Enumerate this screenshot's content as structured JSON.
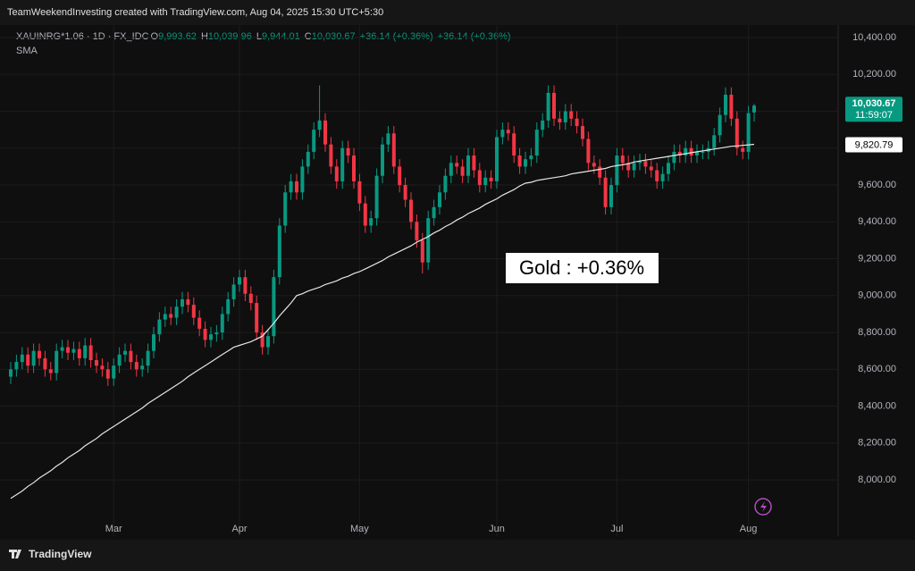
{
  "header": {
    "title": "TeamWeekendInvesting created with TradingView.com, Aug 04, 2025 15:30 UTC+5:30"
  },
  "legend": {
    "symbol": "XAUINRG*1.06 · 1D · FX_IDC",
    "open_label": "O",
    "open": "9,993.62",
    "high_label": "H",
    "high": "10,039.96",
    "low_label": "L",
    "low": "9,944.01",
    "close_label": "C",
    "close": "10,030.67",
    "changes": [
      "+36.14 (+0.36%)",
      "+36.14 (+0.36%)"
    ]
  },
  "chart_data": {
    "type": "candlestick",
    "up_color": "#089981",
    "down_color": "#f23645",
    "grid": true,
    "categories": [
      null,
      null,
      null,
      null,
      null,
      null,
      null,
      null,
      null,
      null,
      null,
      null,
      null,
      null,
      null,
      null,
      null,
      null,
      "Mar",
      null,
      null,
      null,
      null,
      null,
      null,
      null,
      null,
      null,
      null,
      null,
      null,
      null,
      null,
      null,
      null,
      null,
      null,
      null,
      null,
      null,
      "Apr",
      null,
      null,
      null,
      null,
      null,
      null,
      null,
      null,
      null,
      null,
      null,
      null,
      null,
      null,
      null,
      null,
      null,
      null,
      null,
      null,
      "May",
      null,
      null,
      null,
      null,
      null,
      null,
      null,
      null,
      null,
      null,
      null,
      null,
      null,
      null,
      null,
      null,
      null,
      null,
      null,
      null,
      null,
      null,
      null,
      "Jun",
      null,
      null,
      null,
      null,
      null,
      null,
      null,
      null,
      null,
      null,
      null,
      null,
      null,
      null,
      null,
      null,
      null,
      null,
      null,
      null,
      "Jul",
      null,
      null,
      null,
      null,
      null,
      null,
      null,
      null,
      null,
      null,
      null,
      null,
      null,
      null,
      null,
      null,
      null,
      null,
      null,
      null,
      null,
      null,
      "Aug",
      null
    ],
    "open": [
      8560,
      8600,
      8640,
      8680,
      8620,
      8700,
      8660,
      8600,
      8580,
      8700,
      8720,
      8690,
      8710,
      8660,
      8730,
      8650,
      8620,
      8600,
      8550,
      8620,
      8680,
      8700,
      8640,
      8600,
      8620,
      8700,
      8790,
      8870,
      8900,
      8880,
      8940,
      8980,
      8950,
      8880,
      8820,
      8760,
      8790,
      8800,
      8900,
      8980,
      9060,
      9100,
      9010,
      8960,
      8800,
      8720,
      8780,
      9100,
      9380,
      9560,
      9620,
      9560,
      9700,
      9780,
      9900,
      9950,
      9820,
      9700,
      9620,
      9800,
      9760,
      9620,
      9500,
      9380,
      9420,
      9650,
      9820,
      9880,
      9700,
      9600,
      9520,
      9400,
      9300,
      9180,
      9420,
      9480,
      9560,
      9650,
      9720,
      9700,
      9650,
      9760,
      9680,
      9600,
      9640,
      9620,
      9860,
      9900,
      9880,
      9760,
      9700,
      9740,
      9760,
      9900,
      9950,
      10100,
      9960,
      9940,
      10000,
      9960,
      9920,
      9850,
      9720,
      9700,
      9640,
      9480,
      9600,
      9760,
      9720,
      9680,
      9720,
      9730,
      9700,
      9680,
      9620,
      9660,
      9720,
      9780,
      9760,
      9800,
      9760,
      9780,
      9780,
      9800,
      9870,
      9980,
      10090,
      9960,
      9800,
      9780,
      9993.62
    ],
    "high": [
      8640,
      8680,
      8720,
      8720,
      8740,
      8740,
      8700,
      8640,
      8740,
      8760,
      8760,
      8750,
      8750,
      8770,
      8770,
      8690,
      8660,
      8640,
      8660,
      8720,
      8740,
      8740,
      8680,
      8660,
      8740,
      8830,
      8910,
      8940,
      8940,
      8980,
      9020,
      9020,
      8990,
      8920,
      8860,
      8830,
      8840,
      8940,
      9020,
      9100,
      9140,
      9140,
      9050,
      9000,
      8840,
      8820,
      9140,
      9420,
      9600,
      9660,
      9660,
      9740,
      9820,
      9940,
      10140,
      9990,
      9860,
      9740,
      9840,
      9840,
      9800,
      9660,
      9540,
      9460,
      9690,
      9860,
      9920,
      9920,
      9740,
      9640,
      9560,
      9440,
      9340,
      9460,
      9520,
      9600,
      9690,
      9760,
      9760,
      9740,
      9800,
      9800,
      9720,
      9680,
      9680,
      9900,
      9940,
      9940,
      9920,
      9800,
      9780,
      9800,
      9940,
      9990,
      10140,
      10140,
      10000,
      10040,
      10040,
      10000,
      9960,
      9890,
      9760,
      9740,
      9680,
      9640,
      9800,
      9800,
      9760,
      9760,
      9770,
      9770,
      9740,
      9720,
      9700,
      9760,
      9820,
      9820,
      9840,
      9840,
      9820,
      9820,
      9840,
      9910,
      10020,
      10130,
      10130,
      10000,
      9840,
      10030,
      10039.96
    ],
    "low": [
      8520,
      8560,
      8600,
      8580,
      8580,
      8620,
      8560,
      8540,
      8540,
      8660,
      8650,
      8650,
      8620,
      8620,
      8610,
      8580,
      8560,
      8510,
      8510,
      8580,
      8640,
      8600,
      8560,
      8560,
      8580,
      8660,
      8750,
      8830,
      8840,
      8840,
      8900,
      8910,
      8840,
      8780,
      8720,
      8720,
      8750,
      8760,
      8860,
      8940,
      9020,
      8970,
      8920,
      8760,
      8680,
      8680,
      8740,
      9060,
      9340,
      9520,
      9520,
      9520,
      9660,
      9740,
      9860,
      9780,
      9660,
      9580,
      9580,
      9720,
      9580,
      9460,
      9340,
      9340,
      9380,
      9610,
      9780,
      9660,
      9560,
      9480,
      9360,
      9260,
      9120,
      9140,
      9380,
      9440,
      9520,
      9610,
      9660,
      9610,
      9610,
      9640,
      9560,
      9560,
      9580,
      9580,
      9820,
      9840,
      9720,
      9660,
      9660,
      9700,
      9720,
      9860,
      9910,
      9920,
      9900,
      9900,
      9920,
      9880,
      9810,
      9680,
      9660,
      9600,
      9440,
      9440,
      9560,
      9680,
      9640,
      9640,
      9680,
      9660,
      9640,
      9580,
      9580,
      9620,
      9680,
      9720,
      9720,
      9720,
      9720,
      9740,
      9740,
      9760,
      9830,
      9940,
      9920,
      9760,
      9740,
      9740,
      9944.01
    ],
    "close": [
      8600,
      8640,
      8680,
      8620,
      8700,
      8660,
      8600,
      8580,
      8700,
      8720,
      8690,
      8710,
      8660,
      8730,
      8650,
      8620,
      8600,
      8550,
      8620,
      8680,
      8700,
      8640,
      8600,
      8620,
      8700,
      8790,
      8870,
      8900,
      8880,
      8940,
      8980,
      8950,
      8880,
      8820,
      8760,
      8790,
      8800,
      8900,
      8980,
      9060,
      9100,
      9010,
      8960,
      8800,
      8720,
      8780,
      9100,
      9380,
      9560,
      9620,
      9560,
      9700,
      9780,
      9900,
      9950,
      9820,
      9700,
      9620,
      9800,
      9760,
      9620,
      9500,
      9380,
      9420,
      9650,
      9820,
      9880,
      9700,
      9600,
      9520,
      9400,
      9300,
      9180,
      9420,
      9480,
      9560,
      9650,
      9720,
      9700,
      9650,
      9760,
      9680,
      9600,
      9640,
      9620,
      9860,
      9900,
      9880,
      9760,
      9700,
      9740,
      9760,
      9900,
      9950,
      10100,
      9960,
      9940,
      10000,
      9960,
      9920,
      9850,
      9720,
      9700,
      9640,
      9480,
      9600,
      9760,
      9720,
      9680,
      9720,
      9730,
      9700,
      9680,
      9620,
      9660,
      9720,
      9780,
      9760,
      9800,
      9760,
      9780,
      9780,
      9800,
      9870,
      9980,
      10090,
      9960,
      9800,
      9780,
      9990,
      10030.67
    ],
    "series": [
      {
        "name": "SMA",
        "color": "#e6e6e6",
        "values": [
          7900,
          7920,
          7940,
          7965,
          7985,
          8010,
          8030,
          8050,
          8075,
          8095,
          8120,
          8140,
          8160,
          8185,
          8205,
          8225,
          8250,
          8270,
          8290,
          8310,
          8330,
          8350,
          8370,
          8390,
          8415,
          8435,
          8455,
          8475,
          8495,
          8515,
          8535,
          8560,
          8580,
          8600,
          8620,
          8640,
          8660,
          8680,
          8700,
          8720,
          8730,
          8740,
          8750,
          8765,
          8780,
          8815,
          8850,
          8890,
          8925,
          8960,
          9000,
          9010,
          9025,
          9035,
          9045,
          9060,
          9070,
          9080,
          9095,
          9105,
          9120,
          9130,
          9145,
          9160,
          9175,
          9190,
          9210,
          9225,
          9240,
          9255,
          9270,
          9290,
          9305,
          9320,
          9340,
          9355,
          9375,
          9390,
          9410,
          9425,
          9445,
          9460,
          9475,
          9495,
          9510,
          9525,
          9545,
          9560,
          9575,
          9595,
          9610,
          9615,
          9625,
          9630,
          9635,
          9640,
          9645,
          9650,
          9660,
          9665,
          9670,
          9675,
          9680,
          9685,
          9690,
          9700,
          9705,
          9710,
          9715,
          9725,
          9730,
          9735,
          9740,
          9745,
          9750,
          9755,
          9760,
          9765,
          9770,
          9775,
          9780,
          9785,
          9790,
          9795,
          9800,
          9805,
          9810,
          9812,
          9815,
          9818,
          9820.79
        ]
      }
    ],
    "ylim": [
      7695,
      10468
    ],
    "yticks": [
      {
        "value": 8000,
        "label": "8,000.00"
      },
      {
        "value": 8200,
        "label": "8,200.00"
      },
      {
        "value": 8400,
        "label": "8,400.00"
      },
      {
        "value": 8600,
        "label": "8,600.00"
      },
      {
        "value": 8800,
        "label": "8,800.00"
      },
      {
        "value": 9000,
        "label": "9,000.00"
      },
      {
        "value": 9200,
        "label": "9,200.00"
      },
      {
        "value": 9400,
        "label": "9,400.00"
      },
      {
        "value": 9600,
        "label": "9,600.00"
      },
      {
        "value": 9800,
        "label": "9,800.00"
      },
      {
        "value": 10000,
        "label": "10,000.00"
      },
      {
        "value": 10200,
        "label": "10,200.00"
      },
      {
        "value": 10400,
        "label": "10,400.00"
      }
    ],
    "annotation": "Gold : +0.36%",
    "last_price_label": "10,030.67",
    "countdown": "11:59:07",
    "sma_last_label": "9,820.79"
  },
  "footer": {
    "brand": "TradingView"
  }
}
